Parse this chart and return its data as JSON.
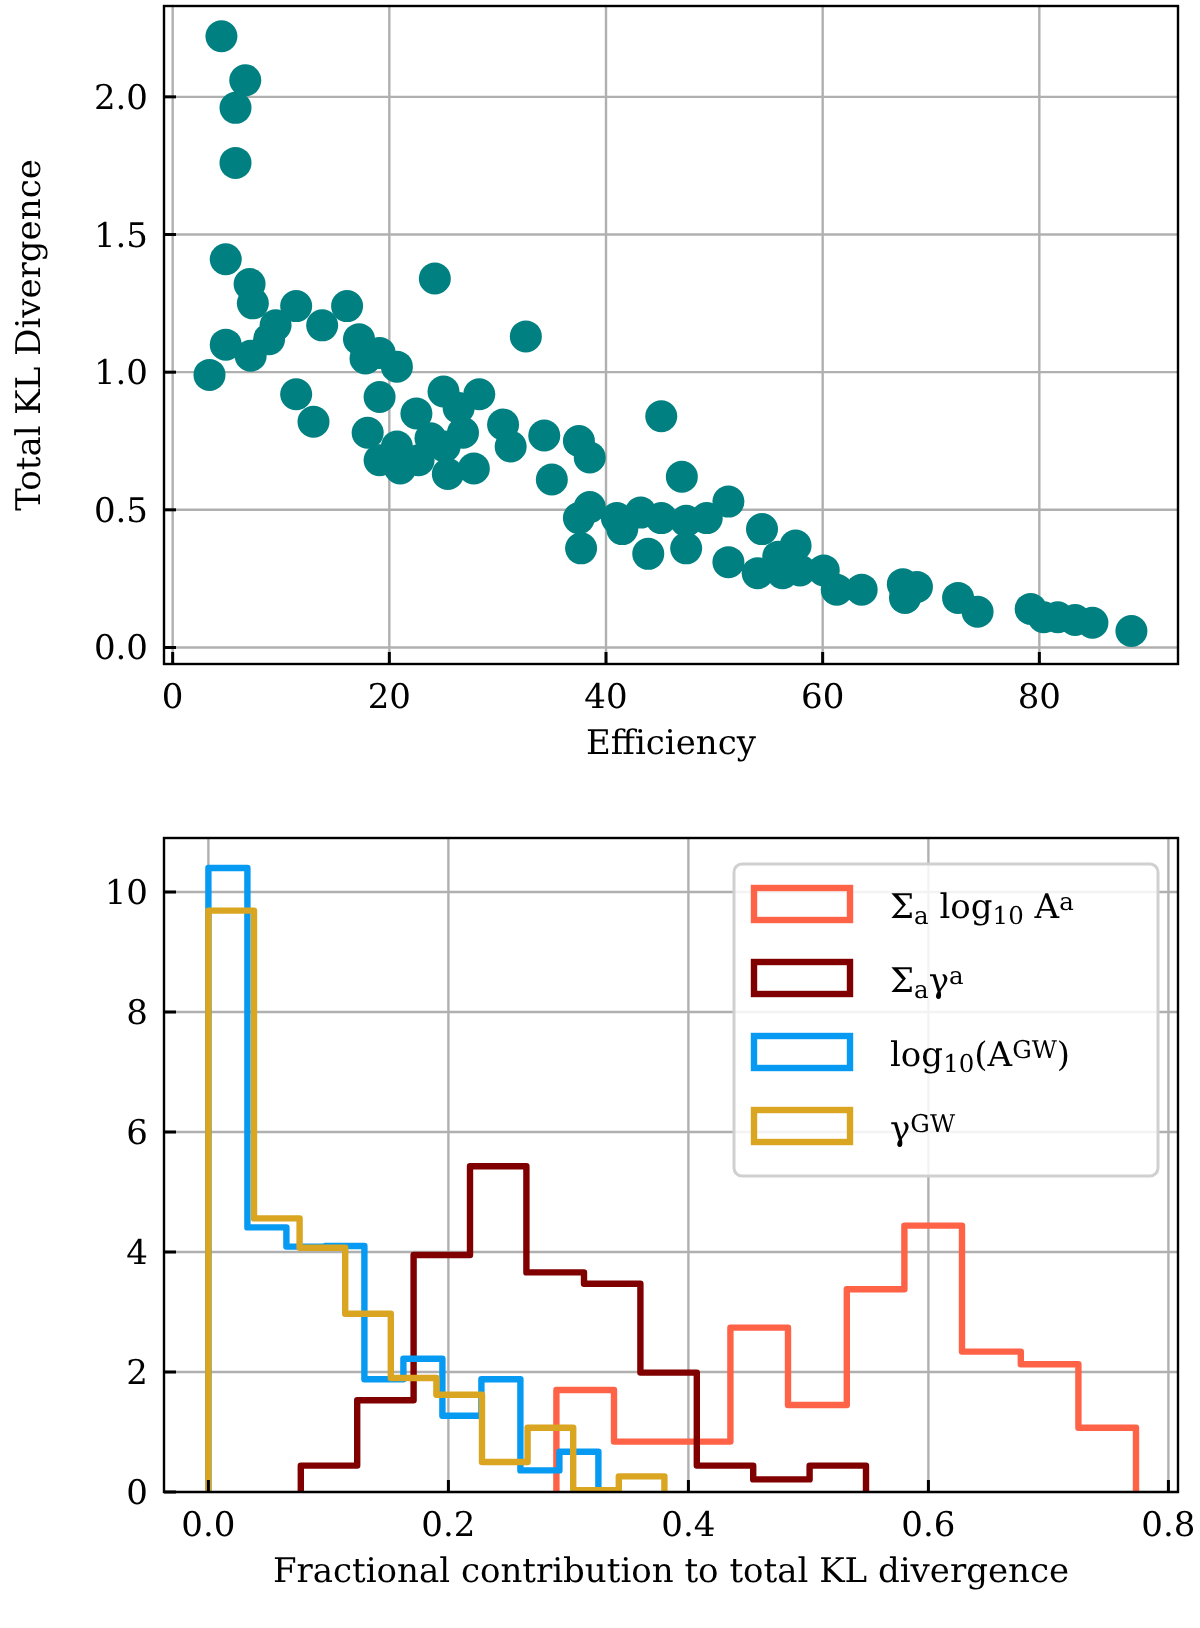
{
  "chart_data": [
    {
      "type": "scatter",
      "xlabel": "Efficiency",
      "ylabel": "Total KL Divergence",
      "color": "#008080",
      "marker": "circle",
      "grid": true,
      "xlim": [
        -0.8,
        92.8
      ],
      "ylim": [
        -0.06,
        2.33
      ],
      "xticks": [
        0,
        20,
        40,
        60,
        80
      ],
      "yticks": [
        {
          "value": 0,
          "label": "0.0"
        },
        {
          "value": 0.5,
          "label": "0.5"
        },
        {
          "value": 1,
          "label": "1.0"
        },
        {
          "value": 1.5,
          "label": "1.5"
        },
        {
          "value": 2,
          "label": "2.0"
        }
      ],
      "x": [
        4.5,
        6.7,
        5.8,
        5.8,
        4.9,
        7.1,
        7.4,
        11.4,
        16.1,
        13.8,
        9.5,
        8.9,
        4.9,
        7.2,
        3.4,
        17.2,
        17.8,
        19.1,
        20.7,
        24.2,
        32.6,
        11.4,
        13.0,
        19.1,
        25.0,
        28.3,
        22.5,
        18.0,
        26.4,
        30.5,
        31.2,
        34.3,
        37.5,
        38.5,
        19.1,
        21.0,
        22.7,
        25.4,
        27.8,
        25.1,
        26.8,
        23.8,
        20.7,
        35.0,
        45.1,
        47.0,
        37.5,
        38.5,
        41.0,
        41.5,
        43.2,
        45.1,
        47.4,
        49.3,
        51.3,
        37.7,
        43.9,
        47.4,
        51.3,
        54.4,
        54.0,
        55.9,
        56.3,
        57.5,
        57.9,
        60.1,
        61.3,
        63.6,
        67.4,
        68.7,
        67.6,
        72.5,
        74.3,
        79.2,
        80.4,
        81.7,
        83.3,
        84.9,
        88.5
      ],
      "values": [
        2.22,
        2.06,
        1.96,
        1.76,
        1.41,
        1.32,
        1.25,
        1.24,
        1.24,
        1.17,
        1.17,
        1.12,
        1.1,
        1.06,
        0.99,
        1.12,
        1.05,
        1.07,
        1.02,
        1.34,
        1.13,
        0.92,
        0.82,
        0.91,
        0.93,
        0.92,
        0.85,
        0.78,
        0.87,
        0.81,
        0.73,
        0.77,
        0.75,
        0.69,
        0.68,
        0.65,
        0.68,
        0.63,
        0.65,
        0.73,
        0.78,
        0.76,
        0.73,
        0.61,
        0.84,
        0.62,
        0.47,
        0.51,
        0.47,
        0.43,
        0.49,
        0.47,
        0.46,
        0.47,
        0.53,
        0.36,
        0.34,
        0.36,
        0.31,
        0.43,
        0.27,
        0.33,
        0.27,
        0.37,
        0.28,
        0.28,
        0.21,
        0.21,
        0.23,
        0.22,
        0.18,
        0.18,
        0.13,
        0.14,
        0.11,
        0.11,
        0.1,
        0.09,
        0.06
      ]
    },
    {
      "type": "step",
      "xlabel": "Fractional contribution to total KL divergence",
      "grid": true,
      "legend": "top right",
      "xlim": [
        -0.037,
        0.808
      ],
      "ylim": [
        0,
        10.9
      ],
      "xticks": [
        {
          "value": 0,
          "label": "0.0"
        },
        {
          "value": 0.2,
          "label": "0.2"
        },
        {
          "value": 0.4,
          "label": "0.4"
        },
        {
          "value": 0.6,
          "label": "0.6"
        },
        {
          "value": 0.8,
          "label": "0.8"
        }
      ],
      "yticks": [
        0,
        2,
        4,
        6,
        8,
        10
      ],
      "series": [
        {
          "name": "Σ$_{a}$ log$_{10}$ A$^{a}$",
          "color": "#ff6347",
          "x": [
            0.29,
            0.29,
            0.338,
            0.387,
            0.435,
            0.483,
            0.532,
            0.58,
            0.628,
            0.677,
            0.725,
            0.773
          ],
          "values": [
            0,
            1.7,
            0.84,
            0.84,
            2.74,
            1.45,
            3.38,
            4.44,
            2.34,
            2.13,
            1.07,
            0
          ]
        },
        {
          "name": "Σ$_{a}$γ$^{a}$",
          "color": "#800000",
          "x": [
            0.077,
            0.077,
            0.124,
            0.171,
            0.218,
            0.265,
            0.313,
            0.36,
            0.407,
            0.454,
            0.501,
            0.548
          ],
          "values": [
            0,
            0.44,
            1.53,
            3.95,
            5.43,
            3.66,
            3.47,
            1.99,
            0.44,
            0.21,
            0.44,
            0
          ]
        },
        {
          "name": "log$_{10}$(A$^{GW}$)",
          "color": "#069af3",
          "x": [
            0,
            0,
            0.0325,
            0.065,
            0.0975,
            0.13,
            0.1625,
            0.195,
            0.2275,
            0.26,
            0.2925,
            0.325
          ],
          "values": [
            0,
            10.4,
            4.41,
            4.09,
            4.1,
            1.88,
            2.22,
            1.27,
            1.88,
            0.36,
            0.67,
            0
          ]
        },
        {
          "name": "γ$^{GW}$",
          "color": "#daa520",
          "x": [
            0,
            0,
            0.038,
            0.076,
            0.114,
            0.152,
            0.19,
            0.228,
            0.266,
            0.304,
            0.342,
            0.38
          ],
          "values": [
            0,
            9.69,
            4.56,
            4.07,
            2.97,
            1.9,
            1.62,
            0.5,
            1.07,
            0.03,
            0.26,
            0
          ]
        }
      ]
    }
  ]
}
